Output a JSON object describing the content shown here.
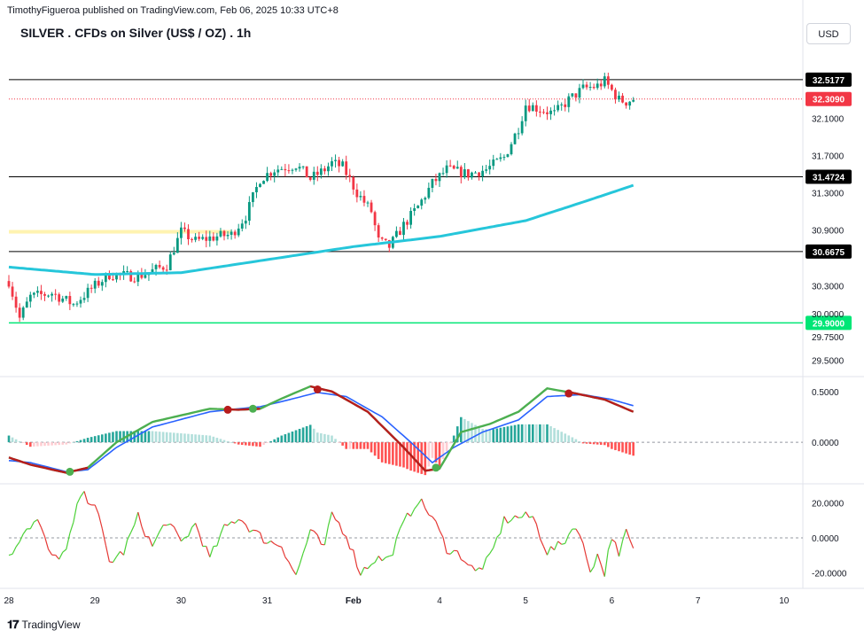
{
  "header": {
    "publisher": "TimothyFigueroa published on TradingView.com, Feb 06, 2025 10:33 UTC+8",
    "title": "SILVER . CFDs on Silver (US$ / OZ) . 1h",
    "currency": "USD"
  },
  "footer": {
    "logo_text": "TradingView"
  },
  "colors": {
    "bull": "#089981",
    "bear": "#f23645",
    "ma": "#26c6da",
    "macd_fast": "#4caf50",
    "macd_slow": "#2962ff",
    "macd_bear": "#b71c1c",
    "osc_up": "#4cd137",
    "osc_down": "#e53935",
    "support_green": "#00e676",
    "zone_yellow": "#fff3b0",
    "level_line": "#000000"
  },
  "chart_data": [
    {
      "type": "candlestick",
      "title": "SILVER . CFDs on Silver (US$ / OZ) . 1h",
      "ylim": [
        29.35,
        32.85
      ],
      "price_axis_ticks": [
        "32.1000",
        "31.7000",
        "31.3000",
        "30.9000",
        "30.3000",
        "30.0000",
        "29.7500",
        "29.5000"
      ],
      "x_axis_ticks": [
        {
          "label": "28",
          "bar": 0
        },
        {
          "label": "29",
          "bar": 24
        },
        {
          "label": "30",
          "bar": 48
        },
        {
          "label": "31",
          "bar": 72
        },
        {
          "label": "Feb",
          "bar": 96
        },
        {
          "label": "4",
          "bar": 120
        },
        {
          "label": "5",
          "bar": 144
        },
        {
          "label": "6",
          "bar": 168
        },
        {
          "label": "7",
          "bar": 192
        },
        {
          "label": "10",
          "bar": 216
        }
      ],
      "horizontal_levels": [
        {
          "price": 32.5177,
          "label": "32.5177",
          "style": "black"
        },
        {
          "price": 32.309,
          "label": "32.3090",
          "style": "current"
        },
        {
          "price": 31.4724,
          "label": "31.4724",
          "style": "black"
        },
        {
          "price": 30.6675,
          "label": "30.6675",
          "style": "black"
        },
        {
          "price": 29.9,
          "label": "29.9000",
          "style": "support"
        }
      ],
      "yellow_zone": {
        "price": 30.88,
        "from_bar": 0,
        "to_bar": 62
      },
      "close_anchors": [
        [
          0,
          30.35
        ],
        [
          3,
          29.95
        ],
        [
          6,
          30.18
        ],
        [
          12,
          30.22
        ],
        [
          18,
          30.1
        ],
        [
          24,
          30.3
        ],
        [
          28,
          30.42
        ],
        [
          36,
          30.4
        ],
        [
          44,
          30.52
        ],
        [
          48,
          30.88
        ],
        [
          52,
          30.78
        ],
        [
          58,
          30.83
        ],
        [
          62,
          30.85
        ],
        [
          66,
          31.05
        ],
        [
          70,
          31.45
        ],
        [
          74,
          31.55
        ],
        [
          80,
          31.6
        ],
        [
          84,
          31.45
        ],
        [
          88,
          31.55
        ],
        [
          90,
          31.62
        ],
        [
          93,
          31.58
        ],
        [
          97,
          31.3
        ],
        [
          101,
          31.1
        ],
        [
          103,
          30.78
        ],
        [
          106,
          30.72
        ],
        [
          110,
          30.95
        ],
        [
          114,
          31.15
        ],
        [
          118,
          31.4
        ],
        [
          122,
          31.55
        ],
        [
          128,
          31.5
        ],
        [
          133,
          31.55
        ],
        [
          138,
          31.68
        ],
        [
          142,
          32.0
        ],
        [
          144,
          32.25
        ],
        [
          148,
          32.2
        ],
        [
          152,
          32.15
        ],
        [
          156,
          32.3
        ],
        [
          160,
          32.42
        ],
        [
          164,
          32.45
        ],
        [
          166,
          32.5
        ],
        [
          168,
          32.4
        ],
        [
          170,
          32.3
        ],
        [
          172,
          32.28
        ],
        [
          174,
          32.31
        ]
      ],
      "ma_curve": [
        [
          0,
          30.5
        ],
        [
          24,
          30.42
        ],
        [
          48,
          30.44
        ],
        [
          72,
          30.58
        ],
        [
          96,
          30.72
        ],
        [
          120,
          30.83
        ],
        [
          144,
          31.0
        ],
        [
          160,
          31.2
        ],
        [
          174,
          31.38
        ]
      ]
    },
    {
      "type": "line",
      "ylim": [
        -0.4,
        0.62
      ],
      "y_axis_ticks": [
        "0.5000",
        "0.0000"
      ],
      "series": [
        {
          "values": [
            [
              0,
              -0.15
            ],
            [
              6,
              -0.22
            ],
            [
              16,
              -0.3
            ],
            [
              22,
              -0.25
            ],
            [
              30,
              0.0
            ],
            [
              40,
              0.2
            ],
            [
              56,
              0.33
            ],
            [
              64,
              0.32
            ],
            [
              70,
              0.33
            ],
            [
              76,
              0.43
            ],
            [
              84,
              0.55
            ],
            [
              90,
              0.5
            ],
            [
              100,
              0.3
            ],
            [
              110,
              -0.05
            ],
            [
              116,
              -0.28
            ],
            [
              120,
              -0.26
            ],
            [
              126,
              0.1
            ],
            [
              134,
              0.18
            ],
            [
              142,
              0.3
            ],
            [
              150,
              0.53
            ],
            [
              158,
              0.48
            ],
            [
              166,
              0.42
            ],
            [
              174,
              0.3
            ]
          ]
        },
        {
          "values": [
            [
              0,
              -0.18
            ],
            [
              6,
              -0.2
            ],
            [
              16,
              -0.29
            ],
            [
              22,
              -0.27
            ],
            [
              30,
              -0.05
            ],
            [
              40,
              0.15
            ],
            [
              56,
              0.3
            ],
            [
              64,
              0.33
            ],
            [
              70,
              0.35
            ],
            [
              76,
              0.4
            ],
            [
              86,
              0.49
            ],
            [
              94,
              0.45
            ],
            [
              104,
              0.25
            ],
            [
              112,
              0.0
            ],
            [
              118,
              -0.2
            ],
            [
              124,
              -0.05
            ],
            [
              132,
              0.1
            ],
            [
              142,
              0.22
            ],
            [
              150,
              0.45
            ],
            [
              160,
              0.47
            ],
            [
              168,
              0.42
            ],
            [
              174,
              0.36
            ]
          ]
        },
        {
          "values": [
            [
              52,
              0.33
            ],
            [
              64,
              0.31
            ],
            [
              84,
              0.52
            ],
            [
              96,
              0.3
            ],
            [
              106,
              -0.1
            ],
            [
              114,
              -0.28
            ],
            [
              118,
              -0.27
            ],
            [
              156,
              0.46
            ],
            [
              166,
              0.42
            ],
            [
              174,
              0.27
            ]
          ]
        }
      ],
      "markers": [
        {
          "bar": 17,
          "value": -0.29,
          "kind": "bull"
        },
        {
          "bar": 61,
          "value": 0.32,
          "kind": "bear"
        },
        {
          "bar": 68,
          "value": 0.33,
          "kind": "bull"
        },
        {
          "bar": 86,
          "value": 0.52,
          "kind": "bear"
        },
        {
          "bar": 119,
          "value": -0.25,
          "kind": "bull"
        },
        {
          "bar": 156,
          "value": 0.48,
          "kind": "bear"
        }
      ]
    },
    {
      "type": "line",
      "ylim": [
        -28,
        30
      ],
      "y_axis_ticks": [
        "20.0000",
        "0.0000",
        "-20.0000"
      ],
      "values_anchors": [
        [
          0,
          -12
        ],
        [
          4,
          4
        ],
        [
          8,
          10
        ],
        [
          12,
          -12
        ],
        [
          16,
          -8
        ],
        [
          20,
          25
        ],
        [
          24,
          20
        ],
        [
          28,
          -14
        ],
        [
          32,
          -8
        ],
        [
          36,
          12
        ],
        [
          40,
          -5
        ],
        [
          44,
          10
        ],
        [
          48,
          -3
        ],
        [
          52,
          8
        ],
        [
          56,
          -12
        ],
        [
          60,
          5
        ],
        [
          64,
          12
        ],
        [
          68,
          4
        ],
        [
          72,
          -2
        ],
        [
          76,
          -4
        ],
        [
          80,
          -22
        ],
        [
          84,
          4
        ],
        [
          88,
          -6
        ],
        [
          90,
          14
        ],
        [
          94,
          2
        ],
        [
          98,
          -20
        ],
        [
          102,
          -12
        ],
        [
          106,
          -12
        ],
        [
          110,
          8
        ],
        [
          114,
          22
        ],
        [
          118,
          12
        ],
        [
          122,
          -6
        ],
        [
          126,
          -10
        ],
        [
          130,
          -20
        ],
        [
          134,
          -12
        ],
        [
          138,
          10
        ],
        [
          142,
          12
        ],
        [
          146,
          12
        ],
        [
          150,
          -8
        ],
        [
          154,
          -4
        ],
        [
          158,
          8
        ],
        [
          162,
          -18
        ],
        [
          164,
          -10
        ],
        [
          166,
          -20
        ],
        [
          168,
          2
        ],
        [
          170,
          -12
        ],
        [
          172,
          4
        ],
        [
          174,
          -8
        ]
      ]
    }
  ]
}
